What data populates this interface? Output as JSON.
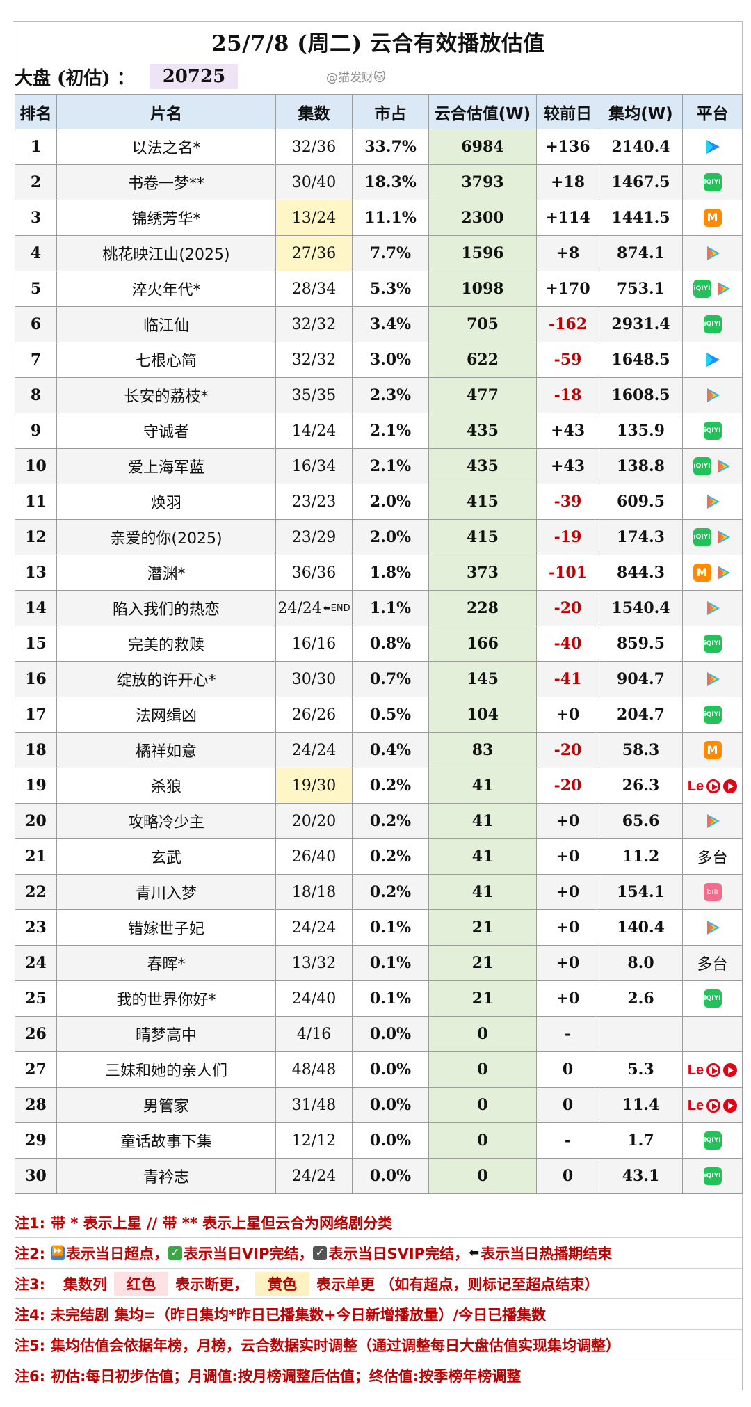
{
  "title": "25/7/8 (周二) 云合有效播放估值",
  "market": {
    "label": "大盘 (初估) ：",
    "value": "20725"
  },
  "watermark": "@猫发财🐱",
  "headers": [
    "排名",
    "片名",
    "集数",
    "市占",
    "云合估值(W)",
    "较前日",
    "集均(W)",
    "平台"
  ],
  "rows": [
    {
      "rank": "1",
      "name": "以法之名*",
      "ep": "32/36",
      "share": "33.7%",
      "est": "6984",
      "chg": "+136",
      "avg": "2140.4",
      "platforms": [
        "youku"
      ]
    },
    {
      "rank": "2",
      "name": "书卷一梦**",
      "ep": "30/40",
      "share": "18.3%",
      "est": "3793",
      "chg": "+18",
      "avg": "1467.5",
      "platforms": [
        "iqiyi"
      ]
    },
    {
      "rank": "3",
      "name": "锦绣芳华*",
      "ep": "13/24",
      "share": "11.1%",
      "est": "2300",
      "chg": "+114",
      "avg": "1441.5",
      "platforms": [
        "mango"
      ],
      "ep_color": "yellow"
    },
    {
      "rank": "4",
      "name": "桃花映江山(2025)",
      "ep": "27/36",
      "share": "7.7%",
      "est": "1596",
      "chg": "+8",
      "avg": "874.1",
      "platforms": [
        "tencent"
      ],
      "ep_color": "yellow"
    },
    {
      "rank": "5",
      "name": "淬火年代*",
      "ep": "28/34",
      "share": "5.3%",
      "est": "1098",
      "chg": "+170",
      "avg": "753.1",
      "platforms": [
        "iqiyi",
        "tencent"
      ]
    },
    {
      "rank": "6",
      "name": "临江仙",
      "ep": "32/32",
      "share": "3.4%",
      "est": "705",
      "chg": "-162",
      "avg": "2931.4",
      "platforms": [
        "iqiyi"
      ]
    },
    {
      "rank": "7",
      "name": "七根心简",
      "ep": "32/32",
      "share": "3.0%",
      "est": "622",
      "chg": "-59",
      "avg": "1648.5",
      "platforms": [
        "youku"
      ]
    },
    {
      "rank": "8",
      "name": "长安的荔枝*",
      "ep": "35/35",
      "share": "2.3%",
      "est": "477",
      "chg": "-18",
      "avg": "1608.5",
      "platforms": [
        "tencent"
      ]
    },
    {
      "rank": "9",
      "name": "守诚者",
      "ep": "14/24",
      "share": "2.1%",
      "est": "435",
      "chg": "+43",
      "avg": "135.9",
      "platforms": [
        "iqiyi"
      ]
    },
    {
      "rank": "10",
      "name": "爱上海军蓝",
      "ep": "16/34",
      "share": "2.1%",
      "est": "435",
      "chg": "+43",
      "avg": "138.8",
      "platforms": [
        "iqiyi",
        "tencent"
      ]
    },
    {
      "rank": "11",
      "name": "焕羽",
      "ep": "23/23",
      "share": "2.0%",
      "est": "415",
      "chg": "-39",
      "avg": "609.5",
      "platforms": [
        "tencent"
      ]
    },
    {
      "rank": "12",
      "name": "亲爱的你(2025)",
      "ep": "23/29",
      "share": "2.0%",
      "est": "415",
      "chg": "-19",
      "avg": "174.3",
      "platforms": [
        "iqiyi",
        "tencent"
      ]
    },
    {
      "rank": "13",
      "name": "潜渊*",
      "ep": "36/36",
      "share": "1.8%",
      "est": "373",
      "chg": "-101",
      "avg": "844.3",
      "platforms": [
        "mango",
        "tencent"
      ]
    },
    {
      "rank": "14",
      "name": "陷入我们的热恋",
      "ep": "24/24",
      "share": "1.1%",
      "est": "228",
      "chg": "-20",
      "avg": "1540.4",
      "platforms": [
        "tencent"
      ],
      "end_mark": "⬅END"
    },
    {
      "rank": "15",
      "name": "完美的救赎",
      "ep": "16/16",
      "share": "0.8%",
      "est": "166",
      "chg": "-40",
      "avg": "859.5",
      "platforms": [
        "iqiyi"
      ]
    },
    {
      "rank": "16",
      "name": "绽放的许开心*",
      "ep": "30/30",
      "share": "0.7%",
      "est": "145",
      "chg": "-41",
      "avg": "904.7",
      "platforms": [
        "tencent"
      ]
    },
    {
      "rank": "17",
      "name": "法网缉凶",
      "ep": "26/26",
      "share": "0.5%",
      "est": "104",
      "chg": "+0",
      "avg": "204.7",
      "platforms": [
        "iqiyi"
      ]
    },
    {
      "rank": "18",
      "name": "橘祥如意",
      "ep": "24/24",
      "share": "0.4%",
      "est": "83",
      "chg": "-20",
      "avg": "58.3",
      "platforms": [
        "mango"
      ]
    },
    {
      "rank": "19",
      "name": "杀狼",
      "ep": "19/30",
      "share": "0.2%",
      "est": "41",
      "chg": "-20",
      "avg": "26.3",
      "platforms": [
        "le",
        "redplay",
        "redfill"
      ],
      "ep_color": "yellow"
    },
    {
      "rank": "20",
      "name": "攻略冷少主",
      "ep": "20/20",
      "share": "0.2%",
      "est": "41",
      "chg": "+0",
      "avg": "65.6",
      "platforms": [
        "tencent"
      ]
    },
    {
      "rank": "21",
      "name": "玄武",
      "ep": "26/40",
      "share": "0.2%",
      "est": "41",
      "chg": "+0",
      "avg": "11.2",
      "platform_text": "多台"
    },
    {
      "rank": "22",
      "name": "青川入梦",
      "ep": "18/18",
      "share": "0.2%",
      "est": "41",
      "chg": "+0",
      "avg": "154.1",
      "platforms": [
        "bili"
      ]
    },
    {
      "rank": "23",
      "name": "错嫁世子妃",
      "ep": "24/24",
      "share": "0.1%",
      "est": "21",
      "chg": "+0",
      "avg": "140.4",
      "platforms": [
        "tencent"
      ]
    },
    {
      "rank": "24",
      "name": "春晖*",
      "ep": "13/32",
      "share": "0.1%",
      "est": "21",
      "chg": "+0",
      "avg": "8.0",
      "platform_text": "多台"
    },
    {
      "rank": "25",
      "name": "我的世界你好*",
      "ep": "24/40",
      "share": "0.1%",
      "est": "21",
      "chg": "+0",
      "avg": "2.6",
      "platforms": [
        "iqiyi"
      ]
    },
    {
      "rank": "26",
      "name": "晴梦高中",
      "ep": "4/16",
      "share": "0.0%",
      "est": "0",
      "chg": "-",
      "avg": ""
    },
    {
      "rank": "27",
      "name": "三妹和她的亲人们",
      "ep": "48/48",
      "share": "0.0%",
      "est": "0",
      "chg": "0",
      "avg": "5.3",
      "platforms": [
        "le",
        "redplay",
        "redfill"
      ]
    },
    {
      "rank": "28",
      "name": "男管家",
      "ep": "31/48",
      "share": "0.0%",
      "est": "0",
      "chg": "0",
      "avg": "11.4",
      "platforms": [
        "le",
        "redplay",
        "redfill"
      ]
    },
    {
      "rank": "29",
      "name": "童话故事下集",
      "ep": "12/12",
      "share": "0.0%",
      "est": "0",
      "chg": "-",
      "avg": "1.7",
      "platforms": [
        "iqiyi"
      ]
    },
    {
      "rank": "30",
      "name": "青衿志",
      "ep": "24/24",
      "share": "0.0%",
      "est": "0",
      "chg": "0",
      "avg": "43.1",
      "platforms": [
        "iqiyi"
      ]
    }
  ],
  "platform_icons": {
    "iqiyi": "iQIYI",
    "mango": "M",
    "le": "Le",
    "bili": "bili"
  },
  "colors": {
    "header_bg": "#dbe8f5",
    "estimate_bg": "#e3efd9",
    "negative": "#c00000",
    "note_red": "#c00000",
    "yellow_mark": "#fff6c8",
    "market_bg": "#efe4f5"
  },
  "notes": {
    "n1": {
      "prefix": "注1:",
      "text": "带 * 表示上星 // 带 ** 表示上星但云合为网络剧分类"
    },
    "n2": {
      "prefix": "注2:",
      "a": "表示当日超点，",
      "b": "表示当日VIP完结，",
      "c": "表示当日SVIP完结，",
      "d": "表示当日热播期结束"
    },
    "n3": {
      "prefix": "注3:",
      "col": "集数列",
      "red": "红色",
      "mid": "表示断更，",
      "yellow": "黄色",
      "tail": "表示单更 （如有超点，则标记至超点结束）"
    },
    "n4": {
      "prefix": "注4:",
      "text": "未完结剧 集均=（昨日集均*昨日已播集数+今日新增播放量）/今日已播集数"
    },
    "n5": {
      "prefix": "注5:",
      "text": "集均估值会依据年榜，月榜，云合数据实时调整（通过调整每日大盘估值实现集均调整）"
    },
    "n6": {
      "prefix": "注6:",
      "text": "初估:每日初步估值；月调值:按月榜调整后估值；终估值:按季榜年榜调整"
    }
  }
}
